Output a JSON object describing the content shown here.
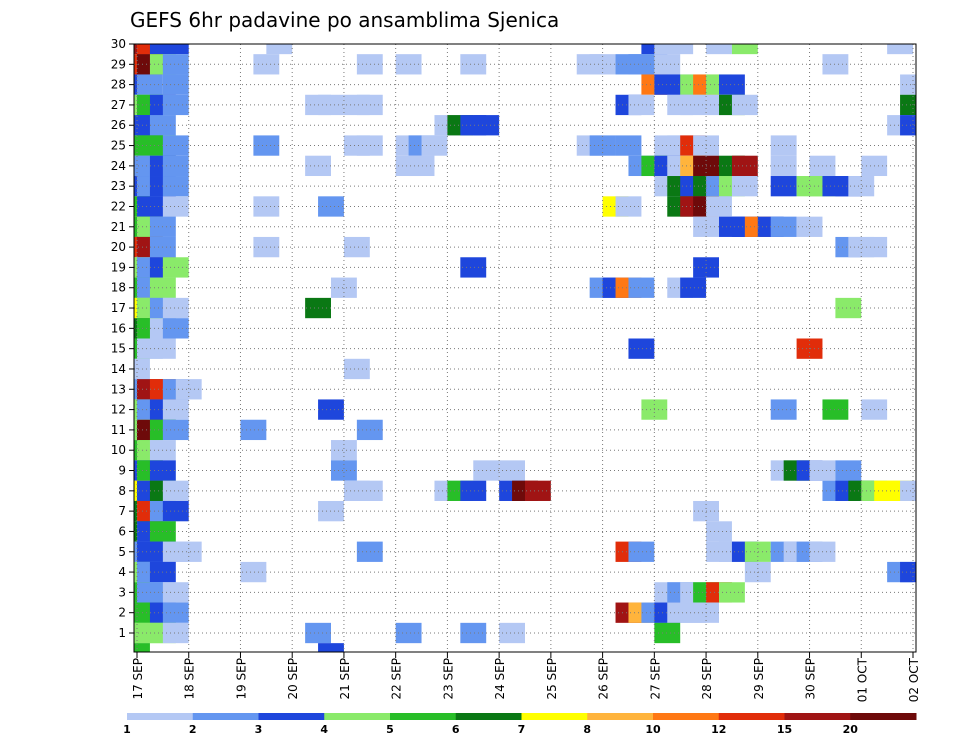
{
  "chart_data": {
    "type": "heatmap",
    "title": "GEFS 6hr padavine po ansamblima Sjenica",
    "x_tick_labels": [
      "17 SEP",
      "18 SEP",
      "19 SEP",
      "20 SEP",
      "21 SEP",
      "22 SEP",
      "23 SEP",
      "24 SEP",
      "25 SEP",
      "26 SEP",
      "27 SEP",
      "28 SEP",
      "29 SEP",
      "30 SEP",
      "01 OCT",
      "02 OCT"
    ],
    "y_tick_labels": [
      "1",
      "2",
      "3",
      "4",
      "5",
      "6",
      "7",
      "8",
      "9",
      "10",
      "11",
      "12",
      "13",
      "14",
      "15",
      "16",
      "17",
      "18",
      "19",
      "20",
      "21",
      "22",
      "23",
      "24",
      "25",
      "26",
      "27",
      "28",
      "29",
      "30"
    ],
    "x_range": [
      0,
      60
    ],
    "y_range": [
      1,
      30
    ],
    "x_units": "6-hour steps from 17 SEP 00z",
    "grid": true,
    "colorbar": {
      "labels": [
        "1",
        "2",
        "3",
        "4",
        "5",
        "6",
        "7",
        "8",
        "10",
        "12",
        "15",
        "20"
      ],
      "colors": [
        "#b4c8f4",
        "#6496f0",
        "#1e46dc",
        "#8aea6a",
        "#28be28",
        "#0a7814",
        "#ffff00",
        "#ffb43c",
        "#ff7814",
        "#e12d0a",
        "#a01414",
        "#6e0a0a"
      ]
    },
    "cells": [
      [
        0,
        30,
        11
      ],
      [
        1,
        30,
        10
      ],
      [
        2,
        30,
        3
      ],
      [
        3,
        30,
        3
      ],
      [
        11,
        30,
        1
      ],
      [
        40,
        30,
        3
      ],
      [
        41,
        30,
        1
      ],
      [
        42,
        30,
        1
      ],
      [
        45,
        30,
        1
      ],
      [
        47,
        30,
        4
      ],
      [
        59,
        30,
        1
      ],
      [
        0,
        29,
        10
      ],
      [
        1,
        29,
        12
      ],
      [
        2,
        29,
        4
      ],
      [
        3,
        29,
        2
      ],
      [
        10,
        29,
        1
      ],
      [
        18,
        29,
        1
      ],
      [
        21,
        29,
        1
      ],
      [
        26,
        29,
        1
      ],
      [
        35,
        29,
        1
      ],
      [
        36,
        29,
        1
      ],
      [
        38,
        29,
        2
      ],
      [
        39,
        29,
        2
      ],
      [
        40,
        29,
        2
      ],
      [
        41,
        29,
        1
      ],
      [
        54,
        29,
        1
      ],
      [
        0,
        28,
        3
      ],
      [
        1,
        28,
        2
      ],
      [
        3,
        28,
        2
      ],
      [
        40,
        28,
        9
      ],
      [
        41,
        28,
        3
      ],
      [
        42,
        28,
        3
      ],
      [
        43,
        28,
        4
      ],
      [
        44,
        28,
        9
      ],
      [
        45,
        28,
        4
      ],
      [
        46,
        28,
        3
      ],
      [
        60,
        28,
        1
      ],
      [
        0,
        27,
        4
      ],
      [
        1,
        27,
        5
      ],
      [
        2,
        27,
        3
      ],
      [
        3,
        27,
        2
      ],
      [
        14,
        27,
        1
      ],
      [
        15,
        27,
        1
      ],
      [
        17,
        27,
        1
      ],
      [
        18,
        27,
        1
      ],
      [
        38,
        27,
        3
      ],
      [
        39,
        27,
        1
      ],
      [
        42,
        27,
        1
      ],
      [
        43,
        27,
        1
      ],
      [
        45,
        27,
        1
      ],
      [
        46,
        27,
        6
      ],
      [
        47,
        27,
        1
      ],
      [
        60,
        27,
        6
      ],
      [
        0,
        26,
        3
      ],
      [
        1,
        26,
        3
      ],
      [
        2,
        26,
        2
      ],
      [
        24,
        26,
        1
      ],
      [
        25,
        26,
        6
      ],
      [
        26,
        26,
        3
      ],
      [
        27,
        26,
        3
      ],
      [
        59,
        26,
        1
      ],
      [
        60,
        26,
        3
      ],
      [
        0,
        25,
        5
      ],
      [
        1,
        25,
        5
      ],
      [
        2,
        25,
        5
      ],
      [
        3,
        25,
        2
      ],
      [
        10,
        25,
        2
      ],
      [
        17,
        25,
        1
      ],
      [
        18,
        25,
        1
      ],
      [
        21,
        25,
        1
      ],
      [
        22,
        25,
        2
      ],
      [
        23,
        25,
        1
      ],
      [
        35,
        25,
        1
      ],
      [
        36,
        25,
        2
      ],
      [
        38,
        25,
        2
      ],
      [
        41,
        25,
        1
      ],
      [
        42,
        25,
        1
      ],
      [
        43,
        25,
        10
      ],
      [
        44,
        25,
        1
      ],
      [
        50,
        25,
        1
      ],
      [
        0,
        24,
        2
      ],
      [
        1,
        24,
        2
      ],
      [
        2,
        24,
        3
      ],
      [
        3,
        24,
        2
      ],
      [
        14,
        24,
        1
      ],
      [
        21,
        24,
        1
      ],
      [
        22,
        24,
        1
      ],
      [
        39,
        24,
        2
      ],
      [
        40,
        24,
        5
      ],
      [
        41,
        24,
        3
      ],
      [
        42,
        24,
        1
      ],
      [
        43,
        24,
        8
      ],
      [
        44,
        24,
        12
      ],
      [
        46,
        24,
        6
      ],
      [
        47,
        24,
        11
      ],
      [
        50,
        24,
        1
      ],
      [
        53,
        24,
        1
      ],
      [
        57,
        24,
        1
      ],
      [
        0,
        23,
        3
      ],
      [
        1,
        23,
        2
      ],
      [
        2,
        23,
        3
      ],
      [
        3,
        23,
        2
      ],
      [
        41,
        23,
        1
      ],
      [
        42,
        23,
        6
      ],
      [
        43,
        23,
        3
      ],
      [
        44,
        23,
        6
      ],
      [
        45,
        23,
        2
      ],
      [
        46,
        23,
        4
      ],
      [
        47,
        23,
        1
      ],
      [
        50,
        23,
        3
      ],
      [
        52,
        23,
        4
      ],
      [
        53,
        23,
        4
      ],
      [
        54,
        23,
        3
      ],
      [
        55,
        23,
        3
      ],
      [
        56,
        23,
        1
      ],
      [
        0,
        22,
        5
      ],
      [
        1,
        22,
        3
      ],
      [
        2,
        22,
        3
      ],
      [
        3,
        22,
        1
      ],
      [
        10,
        22,
        1
      ],
      [
        15,
        22,
        2
      ],
      [
        37,
        22,
        7
      ],
      [
        38,
        22,
        1
      ],
      [
        42,
        22,
        6
      ],
      [
        43,
        22,
        11
      ],
      [
        44,
        22,
        12
      ],
      [
        45,
        22,
        1
      ],
      [
        0,
        21,
        5
      ],
      [
        1,
        21,
        4
      ],
      [
        2,
        21,
        2
      ],
      [
        44,
        21,
        1
      ],
      [
        46,
        21,
        3
      ],
      [
        47,
        21,
        3
      ],
      [
        48,
        21,
        9
      ],
      [
        49,
        21,
        3
      ],
      [
        50,
        21,
        2
      ],
      [
        52,
        21,
        1
      ],
      [
        0,
        20,
        10
      ],
      [
        1,
        20,
        11
      ],
      [
        2,
        20,
        2
      ],
      [
        10,
        20,
        1
      ],
      [
        17,
        20,
        1
      ],
      [
        55,
        20,
        2
      ],
      [
        56,
        20,
        1
      ],
      [
        57,
        20,
        1
      ],
      [
        0,
        19,
        4
      ],
      [
        1,
        19,
        2
      ],
      [
        2,
        19,
        3
      ],
      [
        3,
        19,
        4
      ],
      [
        26,
        19,
        3
      ],
      [
        44,
        19,
        3
      ],
      [
        0,
        18,
        5
      ],
      [
        1,
        18,
        2
      ],
      [
        2,
        18,
        4
      ],
      [
        16,
        18,
        1
      ],
      [
        36,
        18,
        2
      ],
      [
        37,
        18,
        3
      ],
      [
        38,
        18,
        9
      ],
      [
        39,
        18,
        2
      ],
      [
        42,
        18,
        1
      ],
      [
        43,
        18,
        3
      ],
      [
        0,
        17,
        7
      ],
      [
        1,
        17,
        4
      ],
      [
        2,
        17,
        2
      ],
      [
        3,
        17,
        1
      ],
      [
        14,
        17,
        6
      ],
      [
        55,
        17,
        4
      ],
      [
        0,
        16,
        6
      ],
      [
        1,
        16,
        5
      ],
      [
        2,
        16,
        1
      ],
      [
        3,
        16,
        2
      ],
      [
        0,
        15,
        5
      ],
      [
        1,
        15,
        1
      ],
      [
        2,
        15,
        1
      ],
      [
        39,
        15,
        3
      ],
      [
        52,
        15,
        10
      ],
      [
        0,
        14,
        1
      ],
      [
        17,
        14,
        1
      ],
      [
        0,
        13,
        2
      ],
      [
        1,
        13,
        11
      ],
      [
        2,
        13,
        10
      ],
      [
        3,
        13,
        2
      ],
      [
        4,
        13,
        1
      ],
      [
        0,
        12,
        4
      ],
      [
        1,
        12,
        2
      ],
      [
        2,
        12,
        3
      ],
      [
        3,
        12,
        1
      ],
      [
        15,
        12,
        3
      ],
      [
        40,
        12,
        4
      ],
      [
        50,
        12,
        2
      ],
      [
        54,
        12,
        5
      ],
      [
        57,
        12,
        1
      ],
      [
        0,
        11,
        4
      ],
      [
        1,
        11,
        12
      ],
      [
        2,
        11,
        5
      ],
      [
        3,
        11,
        2
      ],
      [
        9,
        11,
        2
      ],
      [
        18,
        11,
        2
      ],
      [
        0,
        10,
        5
      ],
      [
        1,
        10,
        4
      ],
      [
        2,
        10,
        1
      ],
      [
        16,
        10,
        1
      ],
      [
        0,
        9,
        3
      ],
      [
        1,
        9,
        5
      ],
      [
        2,
        9,
        3
      ],
      [
        16,
        9,
        2
      ],
      [
        27,
        9,
        1
      ],
      [
        29,
        9,
        1
      ],
      [
        50,
        9,
        1
      ],
      [
        51,
        9,
        6
      ],
      [
        52,
        9,
        3
      ],
      [
        53,
        9,
        1
      ],
      [
        55,
        9,
        2
      ],
      [
        0,
        8,
        7
      ],
      [
        1,
        8,
        3
      ],
      [
        2,
        8,
        6
      ],
      [
        3,
        8,
        1
      ],
      [
        17,
        8,
        1
      ],
      [
        18,
        8,
        1
      ],
      [
        24,
        8,
        1
      ],
      [
        25,
        8,
        5
      ],
      [
        26,
        8,
        3
      ],
      [
        29,
        8,
        3
      ],
      [
        30,
        8,
        12
      ],
      [
        31,
        8,
        11
      ],
      [
        54,
        8,
        2
      ],
      [
        55,
        8,
        3
      ],
      [
        56,
        8,
        6
      ],
      [
        57,
        8,
        4
      ],
      [
        58,
        8,
        7
      ],
      [
        59,
        8,
        7
      ],
      [
        60,
        8,
        1
      ],
      [
        0,
        7,
        6
      ],
      [
        1,
        7,
        10
      ],
      [
        2,
        7,
        2
      ],
      [
        3,
        7,
        3
      ],
      [
        15,
        7,
        1
      ],
      [
        44,
        7,
        1
      ],
      [
        0,
        6,
        6
      ],
      [
        1,
        6,
        3
      ],
      [
        2,
        6,
        5
      ],
      [
        45,
        6,
        1
      ],
      [
        0,
        5,
        2
      ],
      [
        1,
        5,
        3
      ],
      [
        2,
        5,
        3
      ],
      [
        3,
        5,
        1
      ],
      [
        4,
        5,
        1
      ],
      [
        18,
        5,
        2
      ],
      [
        38,
        5,
        10
      ],
      [
        39,
        5,
        2
      ],
      [
        45,
        5,
        1
      ],
      [
        46,
        5,
        1
      ],
      [
        47,
        5,
        3
      ],
      [
        48,
        5,
        4
      ],
      [
        50,
        5,
        2
      ],
      [
        51,
        5,
        1
      ],
      [
        52,
        5,
        2
      ],
      [
        53,
        5,
        1
      ],
      [
        0,
        4,
        4
      ],
      [
        1,
        4,
        2
      ],
      [
        2,
        4,
        3
      ],
      [
        9,
        4,
        1
      ],
      [
        48,
        4,
        1
      ],
      [
        59,
        4,
        2
      ],
      [
        60,
        4,
        3
      ],
      [
        0,
        3,
        5
      ],
      [
        1,
        3,
        2
      ],
      [
        2,
        3,
        2
      ],
      [
        3,
        3,
        1
      ],
      [
        41,
        3,
        1
      ],
      [
        42,
        3,
        2
      ],
      [
        43,
        3,
        1
      ],
      [
        44,
        3,
        5
      ],
      [
        45,
        3,
        10
      ],
      [
        46,
        3,
        4
      ],
      [
        0,
        2,
        5
      ],
      [
        1,
        2,
        5
      ],
      [
        2,
        2,
        3
      ],
      [
        3,
        2,
        2
      ],
      [
        38,
        2,
        11
      ],
      [
        39,
        2,
        8
      ],
      [
        40,
        2,
        2
      ],
      [
        41,
        2,
        3
      ],
      [
        42,
        2,
        1
      ],
      [
        43,
        2,
        1
      ],
      [
        44,
        2,
        1
      ],
      [
        0,
        1,
        4
      ],
      [
        1,
        1,
        4
      ],
      [
        2,
        1,
        4
      ],
      [
        3,
        1,
        1
      ],
      [
        14,
        1,
        2
      ],
      [
        21,
        1,
        2
      ],
      [
        26,
        1,
        2
      ],
      [
        29,
        1,
        1
      ],
      [
        41,
        1,
        5
      ],
      [
        0,
        0,
        5
      ],
      [
        15,
        0,
        3
      ]
    ]
  }
}
